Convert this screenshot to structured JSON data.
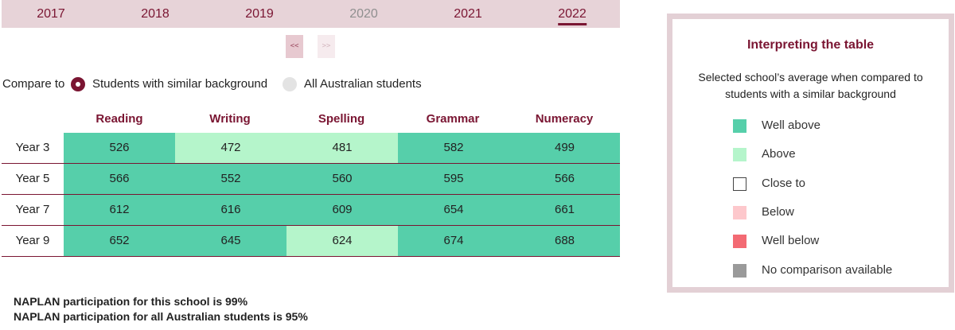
{
  "years": {
    "tabs": [
      {
        "label": "2017",
        "state": "enabled"
      },
      {
        "label": "2018",
        "state": "enabled"
      },
      {
        "label": "2019",
        "state": "enabled"
      },
      {
        "label": "2020",
        "state": "disabled"
      },
      {
        "label": "2021",
        "state": "enabled"
      },
      {
        "label": "2022",
        "state": "selected"
      }
    ]
  },
  "pager": {
    "prev_label": "<<",
    "next_label": ">>"
  },
  "compare": {
    "label": "Compare to",
    "options": [
      {
        "label": "Students with similar background",
        "checked": true
      },
      {
        "label": "All Australian students",
        "checked": false
      }
    ]
  },
  "table": {
    "columns": [
      "Reading",
      "Writing",
      "Spelling",
      "Grammar",
      "Numeracy"
    ],
    "rows": [
      {
        "label": "Year 3",
        "values": [
          "526",
          "472",
          "481",
          "582",
          "499"
        ],
        "levels": [
          "well-above",
          "above",
          "above",
          "well-above",
          "well-above"
        ]
      },
      {
        "label": "Year 5",
        "values": [
          "566",
          "552",
          "560",
          "595",
          "566"
        ],
        "levels": [
          "well-above",
          "well-above",
          "well-above",
          "well-above",
          "well-above"
        ]
      },
      {
        "label": "Year 7",
        "values": [
          "612",
          "616",
          "609",
          "654",
          "661"
        ],
        "levels": [
          "well-above",
          "well-above",
          "well-above",
          "well-above",
          "well-above"
        ]
      },
      {
        "label": "Year 9",
        "values": [
          "652",
          "645",
          "624",
          "674",
          "688"
        ],
        "levels": [
          "well-above",
          "well-above",
          "above",
          "well-above",
          "well-above"
        ]
      }
    ]
  },
  "participation": {
    "school": "NAPLAN participation for this school is 99%",
    "national": "NAPLAN participation for all Australian students is 95%"
  },
  "legend": {
    "title": "Interpreting the table",
    "description": "Selected school’s average when compared to students with a similar background",
    "items": [
      {
        "key": "well-above",
        "label": "Well above",
        "color": "#56cfaa"
      },
      {
        "key": "above",
        "label": "Above",
        "color": "#b5f5cb"
      },
      {
        "key": "close-to",
        "label": "Close to",
        "color": "#ffffff"
      },
      {
        "key": "below",
        "label": "Below",
        "color": "#fdc8cc"
      },
      {
        "key": "well-below",
        "label": "Well below",
        "color": "#f36a73"
      },
      {
        "key": "no-comparison",
        "label": "No comparison available",
        "color": "#9a9a9a"
      }
    ]
  },
  "colors": {
    "accent": "#7a1532",
    "tab_bar": "#e7d3d8",
    "legend_border": "#e3d0d5"
  }
}
